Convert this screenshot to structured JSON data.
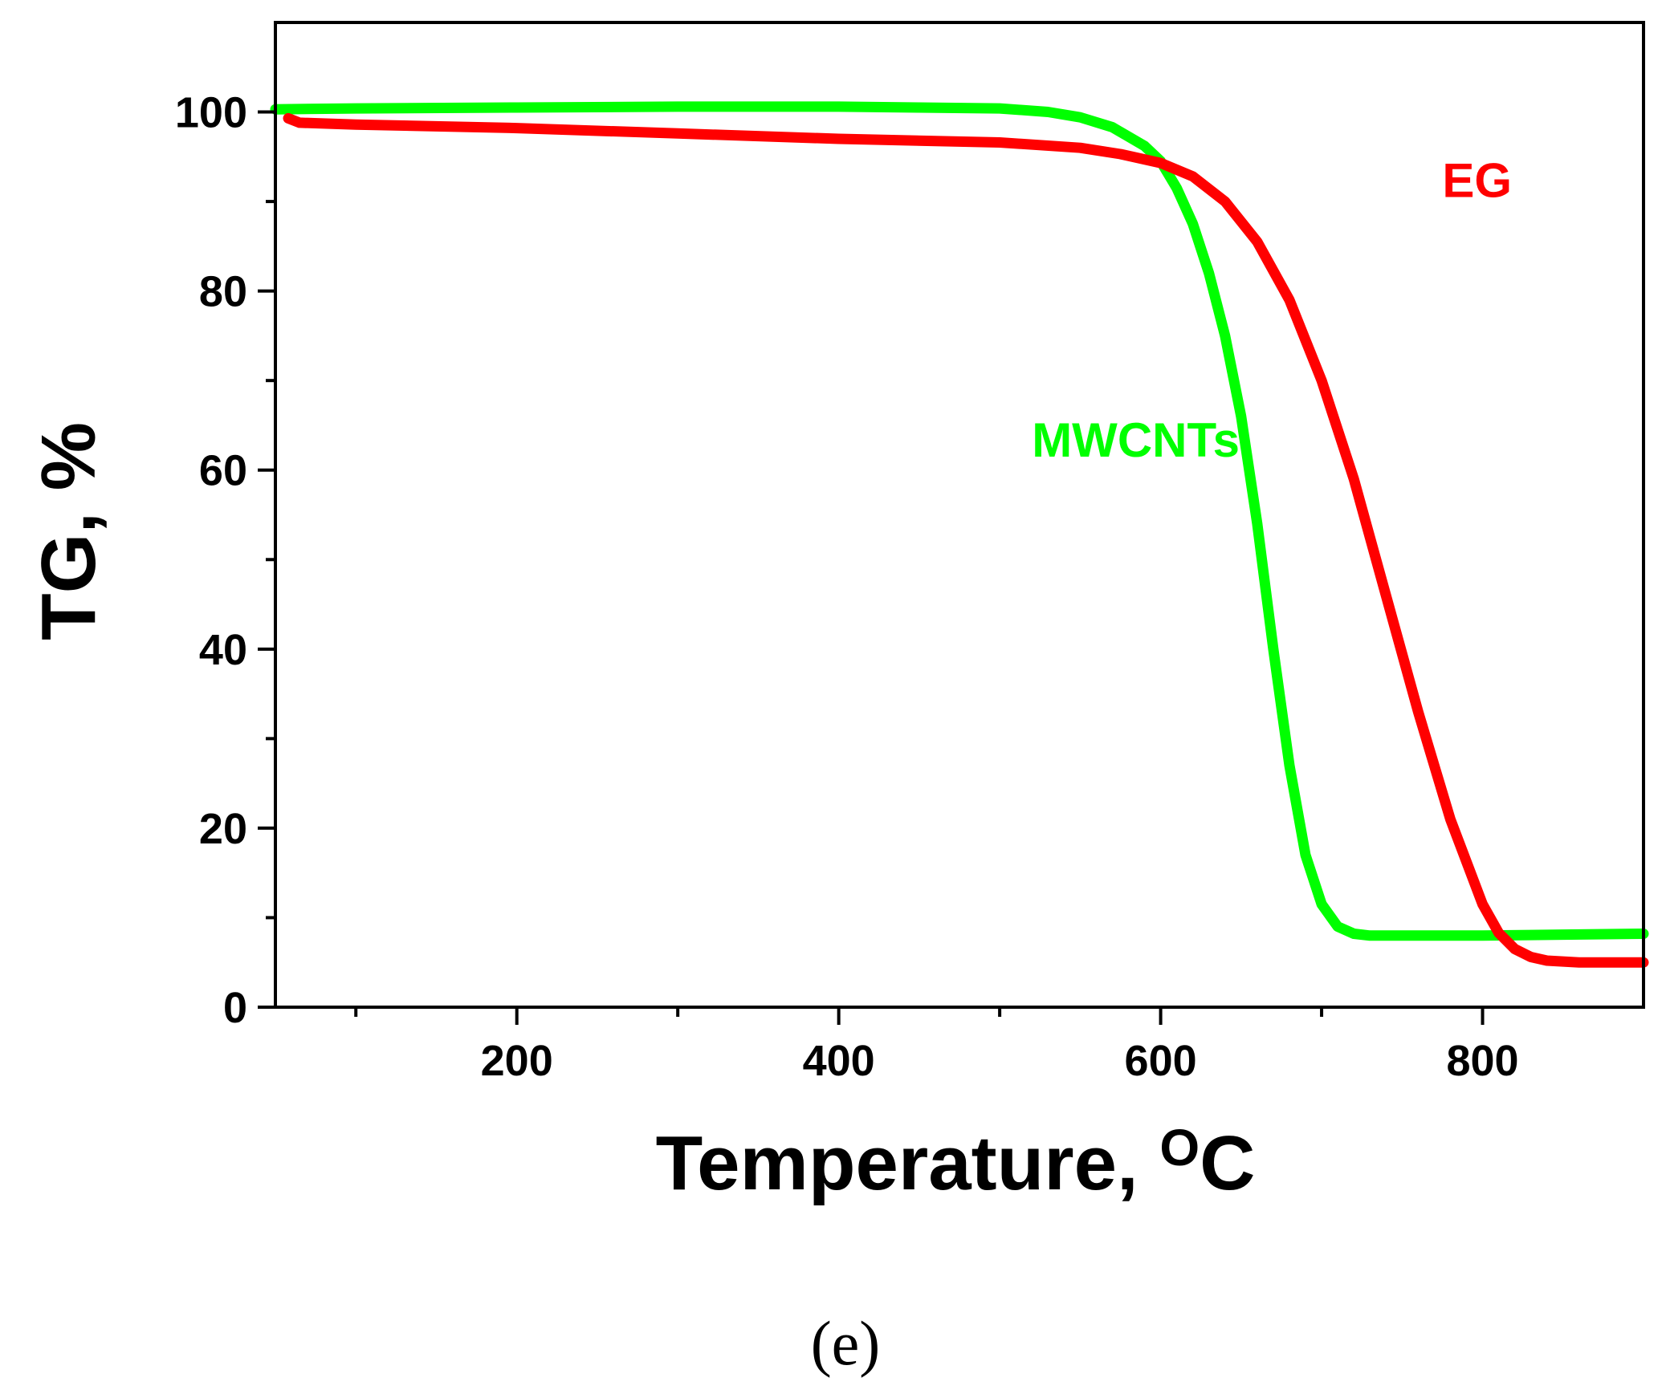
{
  "chart_data": {
    "type": "line",
    "title": "",
    "xlabel": "Temperature, ",
    "xlabel_superscript": "O",
    "xlabel_unit": "C",
    "ylabel": "TG, %",
    "xlim": [
      50,
      900
    ],
    "ylim": [
      0,
      110
    ],
    "x_ticks": [
      200,
      400,
      600,
      800
    ],
    "x_minor_ticks": [
      100,
      300,
      500,
      700
    ],
    "y_ticks": [
      0,
      20,
      40,
      60,
      80,
      100
    ],
    "y_minor_ticks": [
      10,
      30,
      50,
      70,
      90
    ],
    "grid": false,
    "series": [
      {
        "name": "MWCNTs",
        "color": "#00ff00",
        "x": [
          50,
          100,
          200,
          300,
          400,
          450,
          500,
          530,
          550,
          570,
          590,
          600,
          610,
          620,
          630,
          640,
          650,
          660,
          670,
          680,
          690,
          700,
          710,
          720,
          730,
          750,
          800,
          850,
          900
        ],
        "y": [
          100.3,
          100.4,
          100.5,
          100.6,
          100.6,
          100.5,
          100.4,
          100.0,
          99.4,
          98.3,
          96.2,
          94.5,
          91.5,
          87.5,
          82.0,
          75.0,
          66.0,
          54.0,
          40.0,
          27.0,
          17.0,
          11.5,
          9.0,
          8.2,
          8.0,
          8.0,
          8.0,
          8.1,
          8.2
        ]
      },
      {
        "name": "EG",
        "color": "#ff0000",
        "x": [
          58,
          65,
          100,
          200,
          300,
          400,
          500,
          550,
          575,
          600,
          620,
          640,
          660,
          680,
          700,
          720,
          740,
          760,
          780,
          800,
          810,
          820,
          830,
          840,
          860,
          900
        ],
        "y": [
          99.3,
          98.8,
          98.6,
          98.2,
          97.6,
          97.0,
          96.6,
          96.0,
          95.3,
          94.3,
          92.8,
          90.0,
          85.5,
          79.0,
          70.0,
          59.0,
          46.0,
          33.0,
          21.0,
          11.5,
          8.3,
          6.5,
          5.6,
          5.2,
          5.0,
          5.0
        ]
      }
    ],
    "annotations": [
      {
        "text": "MWCNTs",
        "x": 520,
        "y": 61.5,
        "color": "#00ff00"
      },
      {
        "text": "EG",
        "x": 775,
        "y": 90.5,
        "color": "#ff0000"
      }
    ],
    "panel_label": "(e)"
  }
}
